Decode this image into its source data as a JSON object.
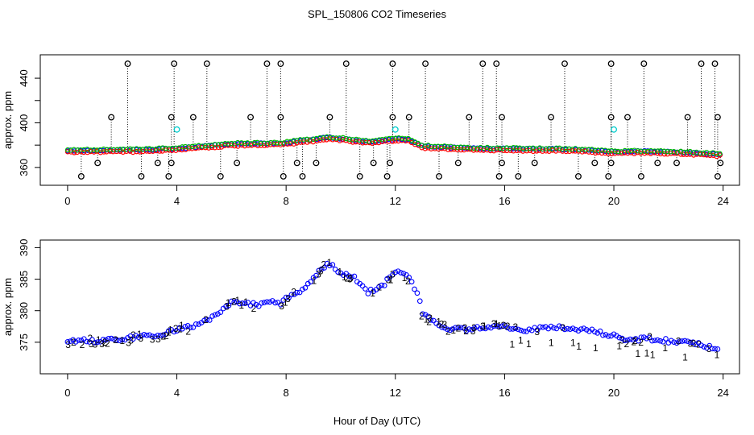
{
  "chart_data": [
    {
      "type": "scatter",
      "title": "SPL_150806  CO2 Timeseries",
      "ylabel": "approx. ppm",
      "xlim": [
        -1,
        24.6
      ],
      "ylim": [
        344,
        461
      ],
      "xticks": [
        0,
        4,
        8,
        12,
        16,
        20,
        24
      ],
      "xtick_labels": [
        "0",
        "4",
        "8",
        "12",
        "16",
        "20",
        "24"
      ],
      "yticks": [
        360,
        400,
        440
      ],
      "ytick_labels": [
        "360",
        "400",
        "440"
      ],
      "minor_yticks": [
        380,
        420
      ],
      "baseline": {
        "hours": [
          0,
          1,
          2,
          3,
          4,
          5,
          6,
          7,
          8,
          8.5,
          9,
          9.5,
          10,
          11,
          12,
          12.5,
          13,
          14,
          15,
          16,
          17,
          18,
          19,
          20,
          21,
          22,
          23,
          23.8
        ],
        "ppm": [
          375,
          375.5,
          375.5,
          376,
          377,
          379,
          381,
          381.5,
          382,
          384,
          385,
          387,
          386,
          383,
          385.5,
          385,
          379,
          378,
          377,
          377,
          376.5,
          376.5,
          375.5,
          374,
          374.5,
          374,
          373,
          372
        ]
      },
      "spikes_high": {
        "hours": [
          2.2,
          3.9,
          5.1,
          7.3,
          7.8,
          10.2,
          11.9,
          13.1,
          15.2,
          15.7,
          18.2,
          19.9,
          21.1,
          23.2,
          23.7
        ],
        "ppm": 453
      },
      "spikes_mid": {
        "hours": [
          1.6,
          3.8,
          4.6,
          6.7,
          7.8,
          9.6,
          11.9,
          12.5,
          14.7,
          15.9,
          17.7,
          19.9,
          20.5,
          22.7,
          23.8
        ],
        "ppm": 405
      },
      "spikes_low": {
        "hours": [
          0.5,
          1.1,
          2.7,
          3.3,
          3.7,
          3.8,
          5.6,
          6.2,
          7.9,
          8.4,
          8.6,
          9.1,
          10.7,
          11.2,
          11.7,
          11.8,
          13.6,
          14.3,
          15.8,
          15.9,
          16.5,
          17.1,
          18.7,
          19.3,
          19.8,
          19.9,
          21.0,
          21.6,
          22.3,
          23.8,
          23.9
        ],
        "ppm": [
          352,
          364,
          352,
          364,
          352,
          364,
          352,
          364,
          352,
          364,
          352,
          364,
          352,
          364,
          352,
          364,
          352,
          364,
          352,
          364,
          352,
          364,
          352,
          364,
          352,
          364,
          352,
          364,
          364,
          352,
          364
        ]
      },
      "cyan_points": {
        "hours": [
          4.0,
          12.0,
          20.0
        ],
        "ppm": [
          394,
          394,
          394
        ]
      },
      "series": [
        {
          "name": "1",
          "color": "#ff0000"
        },
        {
          "name": "2",
          "color": "#00bb00"
        },
        {
          "name": "3",
          "color": "#0000ff"
        }
      ]
    },
    {
      "type": "scatter",
      "title": "",
      "xlabel": "Hour of Day (UTC)",
      "ylabel": "approx. ppm",
      "xlim": [
        -1,
        24.6
      ],
      "ylim": [
        370,
        391.2
      ],
      "xticks": [
        0,
        4,
        8,
        12,
        16,
        20,
        24
      ],
      "xtick_labels": [
        "0",
        "4",
        "8",
        "12",
        "16",
        "20",
        "24"
      ],
      "yticks": [
        375,
        380,
        385,
        390
      ],
      "ytick_labels": [
        "375",
        "380",
        "385",
        "390"
      ],
      "key_points": {
        "hours": [
          0,
          0.5,
          1,
          1.5,
          2,
          2.5,
          3,
          3.5,
          4,
          4.5,
          5,
          5.5,
          6,
          6.5,
          7,
          7.5,
          7.8,
          8,
          8.5,
          9,
          9.3,
          9.5,
          9.7,
          10,
          10.5,
          10.8,
          11,
          11.5,
          12,
          12.3,
          12.5,
          12.8,
          13,
          13.5,
          14,
          14.5,
          15,
          15.5,
          16,
          16.5,
          17,
          17.5,
          18,
          18.5,
          19,
          19.5,
          20,
          20.5,
          21,
          21.5,
          22,
          22.5,
          23,
          23.5,
          23.9
        ],
        "ppm": [
          375,
          375.3,
          375.2,
          375.3,
          375.5,
          375.8,
          376,
          376.2,
          377,
          377.5,
          378.2,
          379.5,
          381.2,
          381.2,
          380.8,
          381.6,
          381,
          382,
          383,
          385.3,
          386.5,
          387.5,
          387,
          386,
          385.3,
          384,
          383,
          383.8,
          386.2,
          385.8,
          385,
          383,
          379.5,
          378,
          377.2,
          377,
          377.2,
          377.5,
          377.5,
          377,
          377,
          377.3,
          377.3,
          377,
          377,
          376.5,
          376,
          375.3,
          375.5,
          375.5,
          375.2,
          375,
          374.8,
          374.3,
          374
        ]
      },
      "series": [
        {
          "name": "1",
          "color": "#ff0000",
          "label": "1"
        },
        {
          "name": "2",
          "color": "#00bb00",
          "label": "2"
        },
        {
          "name": "3",
          "color": "#0000ff",
          "label": "3"
        }
      ]
    }
  ],
  "page": {
    "xlabel": "Hour of Day (UTC)"
  }
}
